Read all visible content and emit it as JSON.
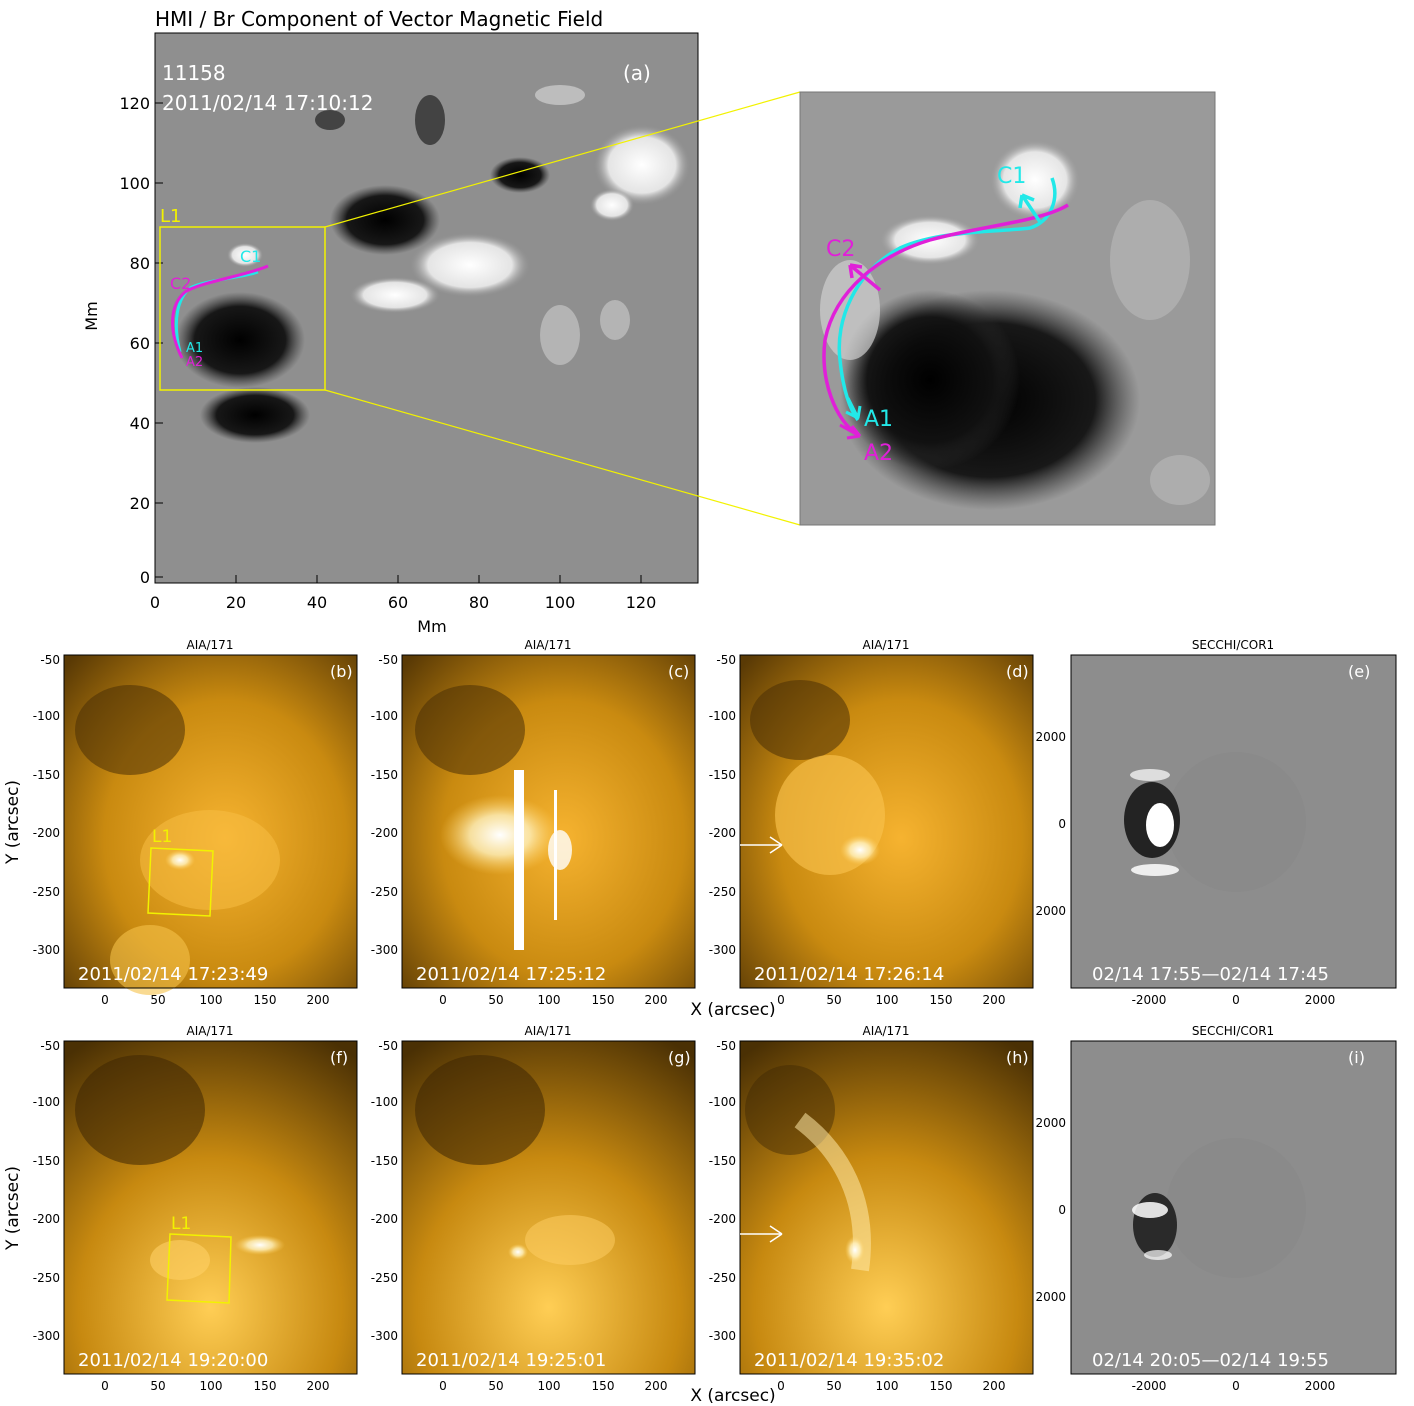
{
  "figure": {
    "panel_a": {
      "title": "HMI / Br Component of Vector Magnetic Field",
      "ar_number": "11158",
      "timestamp": "2011/02/14 17:10:12",
      "tag": "(a)",
      "xlabel": "Mm",
      "ylabel": "Mm",
      "xticks": [
        "0",
        "20",
        "40",
        "60",
        "80",
        "100",
        "120"
      ],
      "yticks": [
        "0",
        "20",
        "40",
        "60",
        "80",
        "100",
        "120"
      ],
      "box_label": "L1",
      "labels": {
        "c1": "C1",
        "c2": "C2",
        "a1": "A1",
        "a2": "A2"
      }
    },
    "aia_title": "AIA/171",
    "cor_title": "SECCHI/COR1",
    "aia_ylabel": "Y (arcsec)",
    "aia_xlabel": "X (arcsec)",
    "aia_yticks": [
      "-50",
      "-100",
      "-150",
      "-200",
      "-250",
      "-300"
    ],
    "aia_xticks": [
      "0",
      "50",
      "100",
      "150",
      "200"
    ],
    "cor_yticks": [
      "2000",
      "0",
      "2000"
    ],
    "cor_xticks": [
      "-2000",
      "0",
      "2000"
    ],
    "panels": [
      {
        "id": "b",
        "tag": "(b)",
        "time": "2011/02/14 17:23:49",
        "box": "L1"
      },
      {
        "id": "c",
        "tag": "(c)",
        "time": "2011/02/14 17:25:12"
      },
      {
        "id": "d",
        "tag": "(d)",
        "time": "2011/02/14 17:26:14"
      },
      {
        "id": "e",
        "tag": "(e)",
        "time": "02/14 17:55—02/14 17:45"
      },
      {
        "id": "f",
        "tag": "(f)",
        "time": "2011/02/14 19:20:00",
        "box": "L1"
      },
      {
        "id": "g",
        "tag": "(g)",
        "time": "2011/02/14 19:25:01"
      },
      {
        "id": "h",
        "tag": "(h)",
        "time": "2011/02/14 19:35:02"
      },
      {
        "id": "i",
        "tag": "(i)",
        "time": "02/14 20:05—02/14 19:55"
      }
    ],
    "colors": {
      "cyan": "#22e8e8",
      "magenta": "#e020d8",
      "yellow": "#f2f200",
      "aia": "#c98a10"
    }
  }
}
